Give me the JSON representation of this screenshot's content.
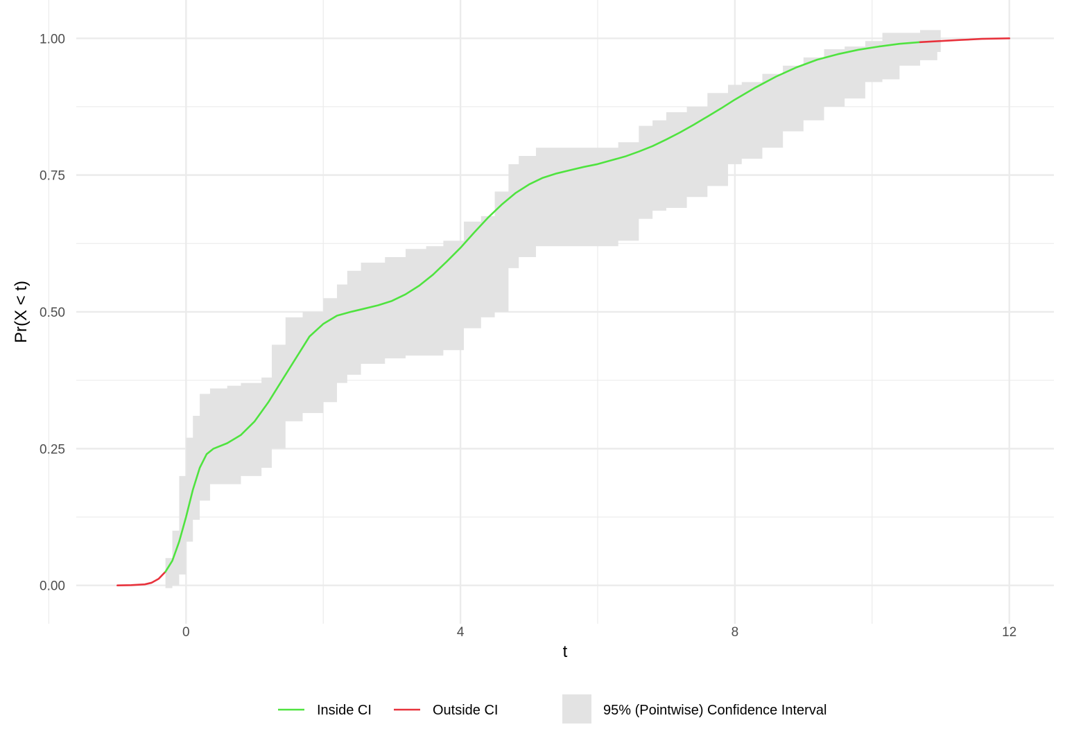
{
  "chart_data": {
    "type": "line",
    "xlabel": "t",
    "ylabel": "Pr(X < t)",
    "xlim": [
      -1.6,
      12.65
    ],
    "ylim": [
      -0.07,
      1.07
    ],
    "x_ticks": [
      0,
      4,
      8,
      12
    ],
    "x_minor": [
      -2,
      2,
      6,
      10
    ],
    "y_ticks": [
      0.0,
      0.25,
      0.5,
      0.75,
      1.0
    ],
    "y_tick_labels": [
      "0.00",
      "0.25",
      "0.50",
      "0.75",
      "1.00"
    ],
    "y_minor": [
      0.125,
      0.375,
      0.625,
      0.875
    ],
    "grid": true,
    "legend_position": "bottom",
    "colors": {
      "inside": "#4fe33f",
      "outside": "#e8323c",
      "band": "#e3e3e3",
      "grid": "#ebebeb"
    },
    "legend": {
      "inside": "Inside CI",
      "outside": "Outside CI",
      "band": "95% (Pointwise) Confidence Interval"
    },
    "curve": {
      "x": [
        -1.0,
        -0.8,
        -0.6,
        -0.5,
        -0.4,
        -0.3,
        -0.2,
        -0.1,
        0.0,
        0.1,
        0.2,
        0.3,
        0.4,
        0.6,
        0.8,
        1.0,
        1.2,
        1.4,
        1.6,
        1.8,
        2.0,
        2.2,
        2.4,
        2.6,
        2.8,
        3.0,
        3.2,
        3.4,
        3.6,
        3.8,
        4.0,
        4.2,
        4.4,
        4.6,
        4.8,
        5.0,
        5.2,
        5.4,
        5.6,
        5.8,
        6.0,
        6.2,
        6.4,
        6.6,
        6.8,
        7.0,
        7.2,
        7.4,
        7.6,
        7.8,
        8.0,
        8.3,
        8.6,
        8.9,
        9.2,
        9.5,
        9.8,
        10.1,
        10.4,
        10.7,
        11.0,
        11.3,
        11.6,
        12.0
      ],
      "y": [
        0.0,
        0.0005,
        0.002,
        0.005,
        0.012,
        0.025,
        0.045,
        0.08,
        0.125,
        0.175,
        0.215,
        0.24,
        0.25,
        0.26,
        0.275,
        0.3,
        0.335,
        0.375,
        0.415,
        0.455,
        0.478,
        0.493,
        0.5,
        0.506,
        0.512,
        0.52,
        0.532,
        0.548,
        0.568,
        0.592,
        0.617,
        0.645,
        0.672,
        0.696,
        0.717,
        0.733,
        0.745,
        0.753,
        0.759,
        0.765,
        0.77,
        0.777,
        0.784,
        0.793,
        0.803,
        0.815,
        0.828,
        0.842,
        0.857,
        0.872,
        0.888,
        0.91,
        0.93,
        0.947,
        0.961,
        0.971,
        0.979,
        0.985,
        0.99,
        0.993,
        0.995,
        0.997,
        0.999,
        1.0
      ],
      "outside_ranges": [
        [
          -1.0,
          -0.25
        ],
        [
          10.9,
          12.0
        ]
      ]
    },
    "ci_band": {
      "x": [
        -0.3,
        -0.2,
        -0.1,
        0.0,
        0.1,
        0.2,
        0.35,
        0.6,
        0.8,
        1.1,
        1.25,
        1.45,
        1.7,
        2.0,
        2.2,
        2.35,
        2.55,
        2.9,
        3.2,
        3.5,
        3.75,
        4.05,
        4.3,
        4.5,
        4.7,
        4.85,
        5.1,
        5.4,
        5.7,
        6.0,
        6.3,
        6.6,
        6.8,
        7.0,
        7.3,
        7.6,
        7.9,
        8.1,
        8.4,
        8.7,
        9.0,
        9.3,
        9.6,
        9.9,
        10.15,
        10.4,
        10.7,
        10.95
      ],
      "lower": [
        -0.005,
        0.0,
        0.02,
        0.08,
        0.12,
        0.155,
        0.185,
        0.185,
        0.2,
        0.215,
        0.25,
        0.3,
        0.315,
        0.335,
        0.37,
        0.385,
        0.405,
        0.415,
        0.42,
        0.42,
        0.43,
        0.47,
        0.49,
        0.5,
        0.58,
        0.6,
        0.62,
        0.62,
        0.62,
        0.62,
        0.63,
        0.67,
        0.685,
        0.69,
        0.71,
        0.73,
        0.77,
        0.78,
        0.8,
        0.83,
        0.85,
        0.875,
        0.89,
        0.92,
        0.925,
        0.95,
        0.96,
        0.975
      ],
      "upper": [
        0.05,
        0.1,
        0.2,
        0.27,
        0.31,
        0.35,
        0.36,
        0.365,
        0.37,
        0.38,
        0.44,
        0.49,
        0.5,
        0.525,
        0.55,
        0.575,
        0.59,
        0.6,
        0.615,
        0.62,
        0.63,
        0.665,
        0.675,
        0.72,
        0.77,
        0.785,
        0.8,
        0.8,
        0.8,
        0.8,
        0.81,
        0.84,
        0.85,
        0.865,
        0.875,
        0.9,
        0.915,
        0.92,
        0.935,
        0.95,
        0.965,
        0.98,
        0.985,
        0.995,
        1.01,
        1.01,
        1.015,
        1.015
      ]
    }
  }
}
